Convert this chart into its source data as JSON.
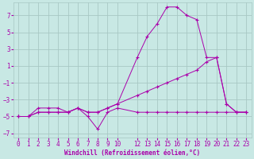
{
  "xlabel": "Windchill (Refroidissement éolien,°C)",
  "background_color": "#c8e8e4",
  "grid_color": "#a8c8c4",
  "line_color": "#aa00aa",
  "xlim": [
    -0.5,
    23.5
  ],
  "ylim": [
    -7.5,
    8.5
  ],
  "yticks": [
    -7,
    -5,
    -3,
    -1,
    1,
    3,
    5,
    7
  ],
  "xticks": [
    0,
    1,
    2,
    3,
    4,
    5,
    6,
    7,
    8,
    9,
    10,
    12,
    13,
    14,
    15,
    16,
    17,
    18,
    19,
    20,
    21,
    22,
    23
  ],
  "series": [
    {
      "x": [
        0,
        1,
        2,
        3,
        4,
        5,
        6,
        7,
        8,
        9,
        10,
        12,
        13,
        14,
        15,
        16,
        17,
        18,
        19,
        20,
        21,
        22,
        23
      ],
      "y": [
        -5,
        -5,
        -4,
        -4,
        -4,
        -4.5,
        -4,
        -5,
        -6.5,
        -4.5,
        -4,
        -4.5,
        -4.5,
        -4.5,
        -4.5,
        -4.5,
        -4.5,
        -4.5,
        -4.5,
        -4.5,
        -4.5,
        -4.5,
        -4.5
      ]
    },
    {
      "x": [
        0,
        1,
        2,
        3,
        4,
        5,
        6,
        7,
        8,
        9,
        10,
        12,
        13,
        14,
        15,
        16,
        17,
        18,
        19,
        20,
        21,
        22,
        23
      ],
      "y": [
        -5,
        -5,
        -4.5,
        -4.5,
        -4.5,
        -4.5,
        -4,
        -4.5,
        -4.5,
        -4,
        -3.5,
        -2.5,
        -2,
        -1.5,
        -1,
        -0.5,
        0,
        0.5,
        1.5,
        2,
        -3.5,
        -4.5,
        -4.5
      ]
    },
    {
      "x": [
        0,
        1,
        2,
        3,
        4,
        5,
        6,
        7,
        8,
        9,
        10,
        12,
        13,
        14,
        15,
        16,
        17,
        18,
        19,
        20,
        21,
        22,
        23
      ],
      "y": [
        -5,
        -5,
        -4.5,
        -4.5,
        -4.5,
        -4.5,
        -4,
        -4.5,
        -4.5,
        -4,
        -3.5,
        2,
        4.5,
        6,
        8,
        8,
        7,
        6.5,
        2,
        2,
        -3.5,
        -4.5,
        -4.5
      ]
    }
  ]
}
